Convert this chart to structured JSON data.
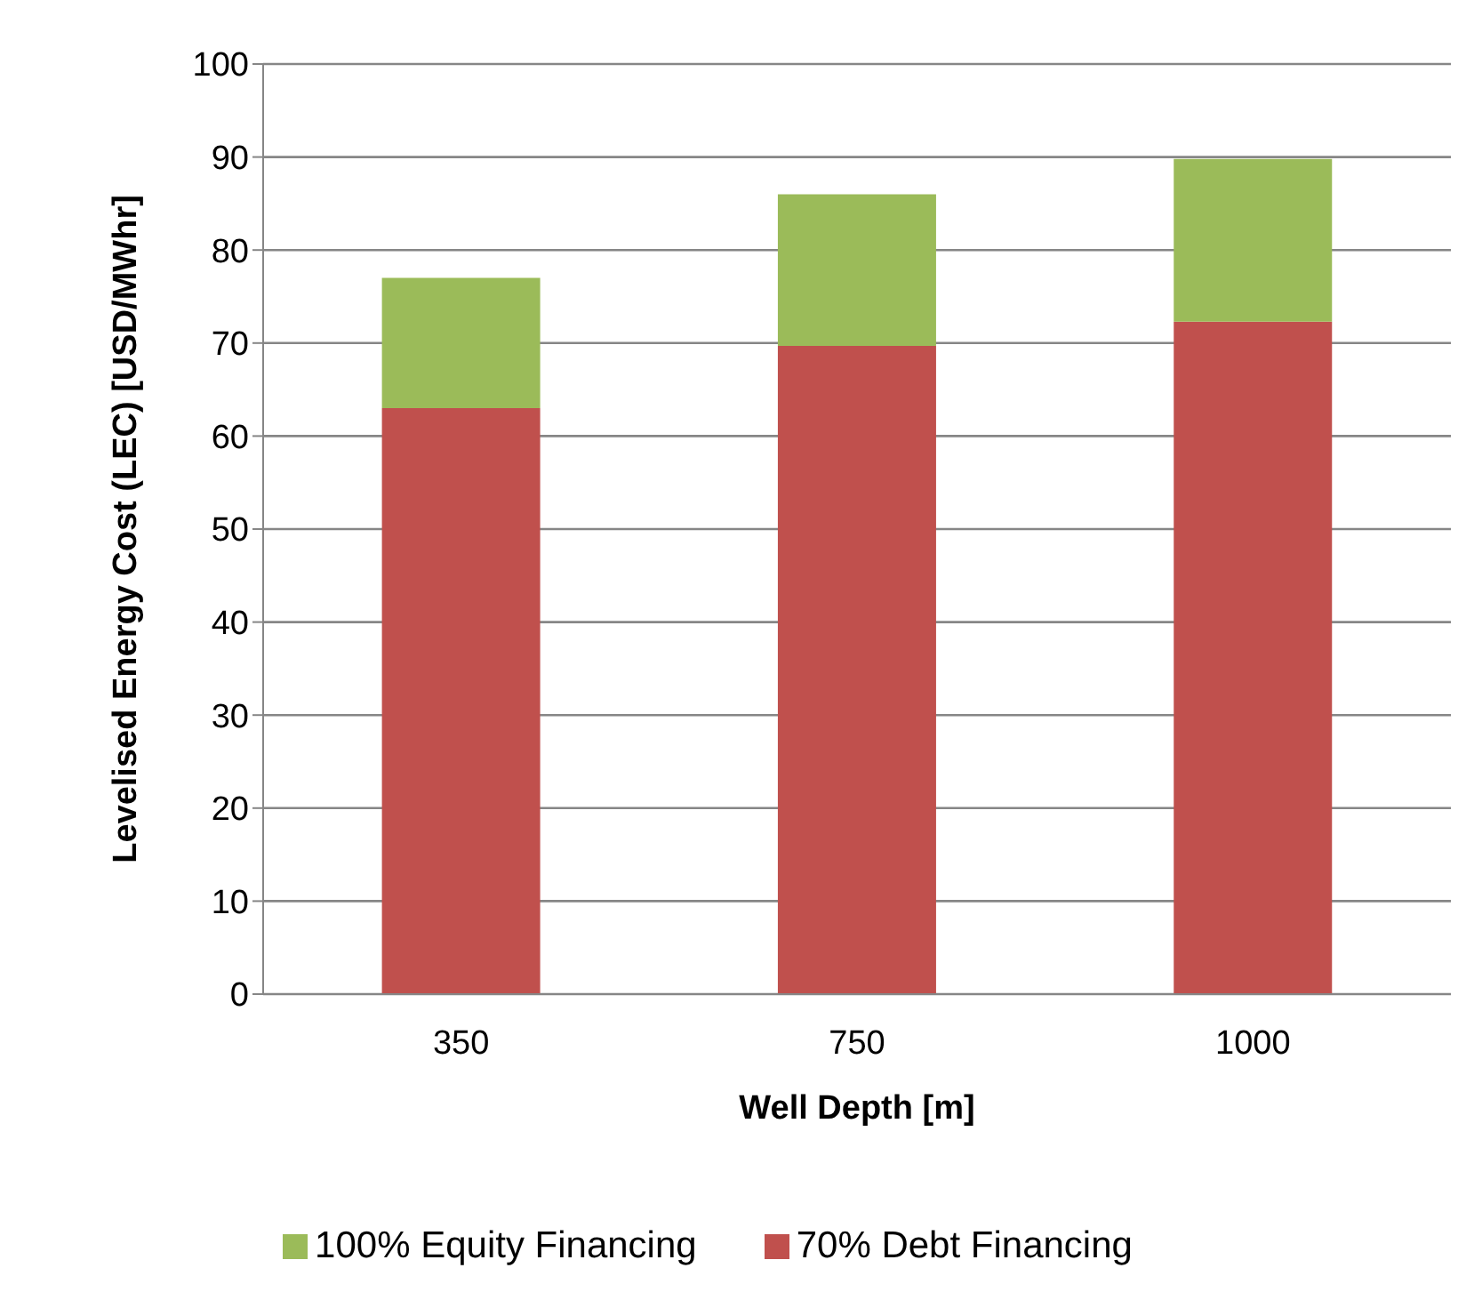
{
  "chart_data": {
    "type": "bar",
    "stacked": true,
    "xlabel": "Well Depth [m]",
    "ylabel": "Levelised Energy Cost (LEC) [USD/MWhr]",
    "categories": [
      "350",
      "750",
      "1000"
    ],
    "series": [
      {
        "name": "70% Debt Financing",
        "color": "#c0504d",
        "values": [
          63,
          69.7,
          72.3
        ]
      },
      {
        "name": "100% Equity Financing",
        "color": "#9bbb59",
        "values": [
          14,
          16.3,
          17.5
        ]
      }
    ],
    "ylim": [
      0,
      100
    ],
    "yticks": [
      0,
      10,
      20,
      30,
      40,
      50,
      60,
      70,
      80,
      90,
      100
    ],
    "grid": "y",
    "legend": "bottom"
  }
}
